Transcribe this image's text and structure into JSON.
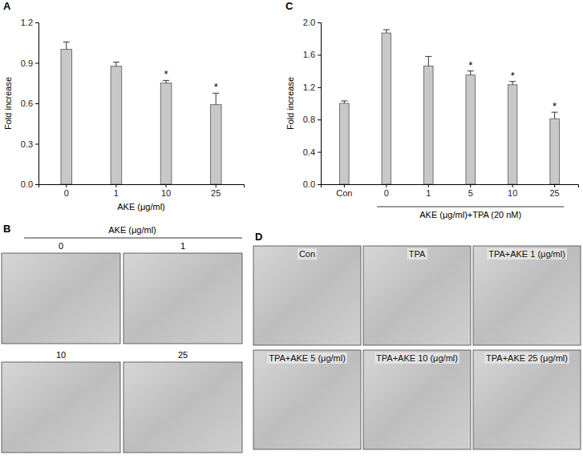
{
  "chart_data": [
    {
      "type": "bar",
      "panel": "A",
      "categories": [
        "0",
        "1",
        "10",
        "25"
      ],
      "values": [
        1.0,
        0.875,
        0.75,
        0.59
      ],
      "errors": [
        0.055,
        0.03,
        0.02,
        0.085
      ],
      "annotations": [
        null,
        null,
        "*",
        "*"
      ],
      "xlabel": "AKE (μg/ml)",
      "ylabel": "Fold increase",
      "ylim": [
        0,
        1.2
      ],
      "yticks": [
        {
          "value": 0,
          "label": "0.0"
        },
        0.3,
        0.6,
        0.9,
        1.2
      ],
      "color": "#c8c8c8"
    },
    {
      "type": "bar",
      "panel": "C",
      "categories": [
        "Con",
        "0",
        "1",
        "5",
        "10",
        "25"
      ],
      "values": [
        1.0,
        1.87,
        1.46,
        1.35,
        1.23,
        0.81
      ],
      "errors": [
        0.03,
        0.04,
        0.12,
        0.05,
        0.04,
        0.08
      ],
      "annotations": [
        null,
        null,
        null,
        "*",
        "*",
        "*"
      ],
      "xlabel": "AKE (μg/ml)+TPA (20 nM)",
      "ylabel": "Fold increase",
      "ylim": [
        0,
        2.0
      ],
      "yticks": [
        {
          "value": 0,
          "label": "0.0"
        },
        0.4,
        0.8,
        1.2,
        1.6,
        {
          "value": 2,
          "label": "2.0"
        }
      ],
      "color": "#c8c8c8"
    }
  ],
  "image_panels": [
    {
      "panel": "B",
      "header": "AKE (μg/ml)",
      "labels": [
        "0",
        "1",
        "10",
        "25"
      ]
    },
    {
      "panel": "D",
      "labels": [
        "Con",
        "TPA",
        "TPA+AKE 1 (μg/ml)",
        "TPA+AKE 5 (μg/ml)",
        "TPA+AKE 10 (μg/ml)",
        "TPA+AKE 25 (μg/ml)"
      ]
    }
  ]
}
